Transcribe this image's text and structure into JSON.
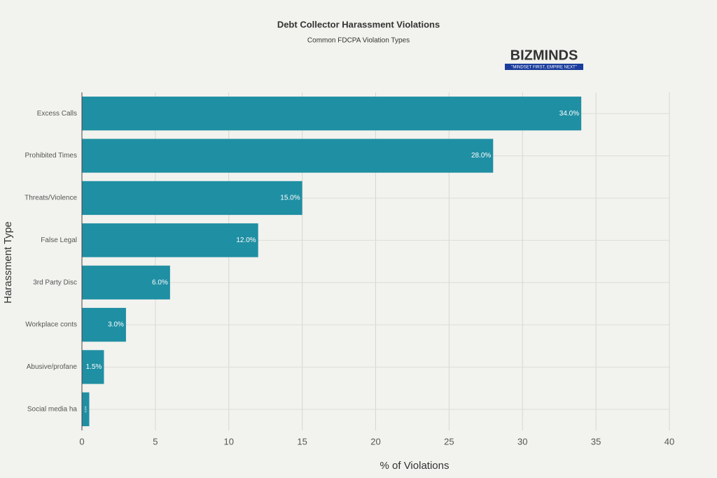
{
  "chart_data": {
    "type": "hbar",
    "title": "Debt Collector Harassment Violations",
    "subtitle": "Common FDCPA Violation Types",
    "x_label": "% of Violations",
    "y_label": "Harassment Type",
    "categories": [
      "Excess Calls",
      "Prohibited Times",
      "Threats/Violence",
      "False Legal",
      "3rd Party Disc",
      "Workplace conts",
      "Abusive/profane",
      "Social media ha"
    ],
    "values": [
      34.0,
      28.0,
      15.0,
      12.0,
      6.0,
      3.0,
      1.5,
      0.5
    ],
    "value_labels": [
      "34.0%",
      "28.0%",
      "15.0%",
      "12.0%",
      "6.0%",
      "3.0%",
      "1.5%",
      "0.5%"
    ],
    "color": "#1f8fa3",
    "xlim": [
      0,
      40
    ],
    "xticks": [
      0,
      5,
      10,
      15,
      20,
      25,
      30,
      35,
      40
    ],
    "grid": true
  },
  "logo": {
    "name": "BIZMINDS",
    "tagline": "\"MINDSET FIRST, EMPIRE NEXT\""
  }
}
